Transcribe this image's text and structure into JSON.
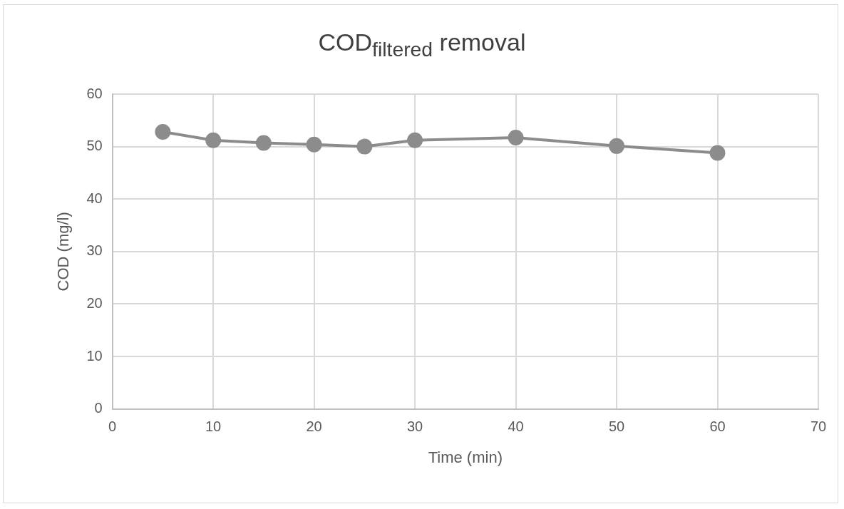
{
  "chart_data": {
    "type": "line",
    "title": "COD$_{filtered}$ removal",
    "xlabel": "Time (min)",
    "ylabel": "COD (mg/l)",
    "x": [
      5,
      10,
      15,
      20,
      25,
      30,
      40,
      50,
      60
    ],
    "series": [
      {
        "color": "#8c8c8c",
        "values": [
          52.8,
          51.2,
          50.7,
          50.4,
          50.0,
          51.2,
          51.7,
          50.1,
          48.8
        ]
      }
    ],
    "xlim": [
      0,
      70
    ],
    "xticks": [
      0,
      10,
      20,
      30,
      40,
      50,
      60,
      70
    ],
    "ylim": [
      0,
      60
    ],
    "yticks": [
      0,
      10,
      20,
      30,
      40,
      50,
      60
    ],
    "grid": true,
    "legend": false,
    "marker": "circle",
    "line_style": "solid"
  }
}
